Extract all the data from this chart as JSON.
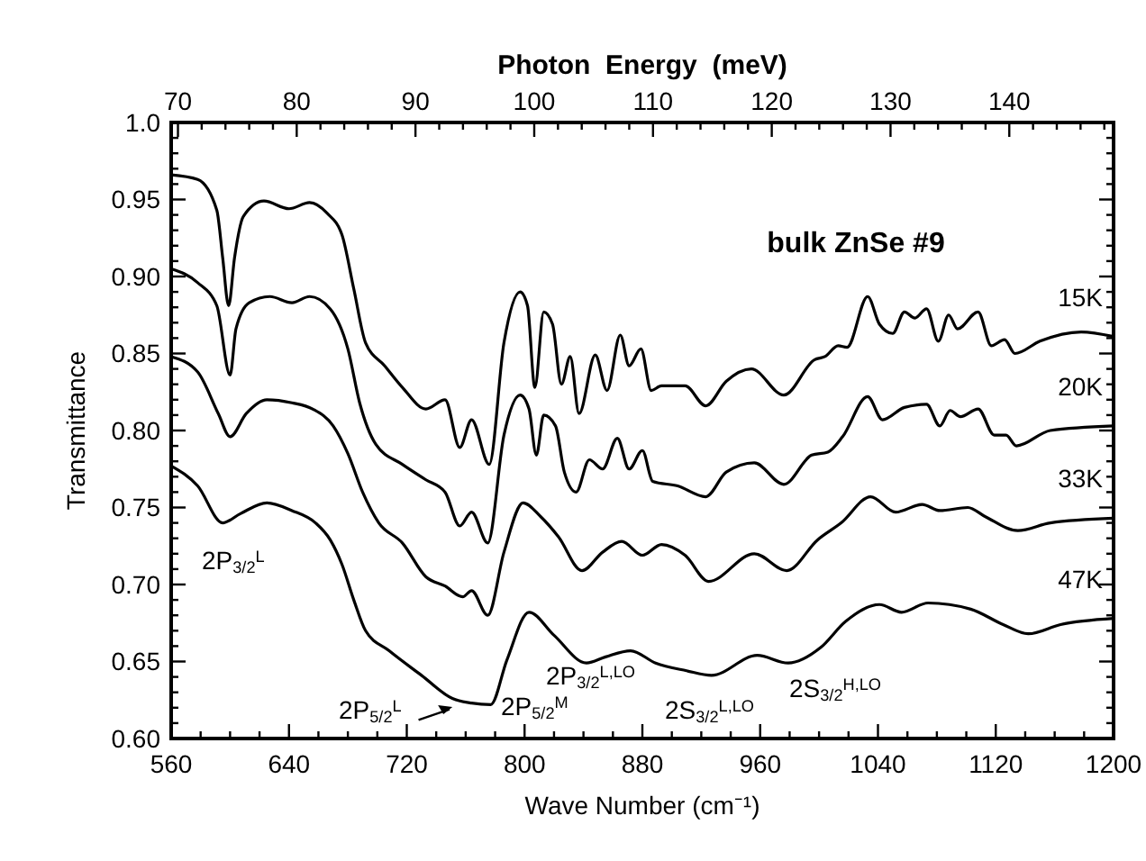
{
  "chart_data": {
    "type": "line",
    "xlabel": "Wave Number (cm⁻¹)",
    "ylabel": "Transmittance",
    "x2label": "Photon  Energy  (meV)",
    "xlim": [
      560,
      1200
    ],
    "ylim": [
      0.6,
      1.0
    ],
    "x2lim": [
      69.43,
      148.78
    ],
    "xticks": [
      560,
      {
        "value": 580,
        "label": null
      },
      {
        "value": 600,
        "label": null
      },
      {
        "value": 620,
        "label": null
      },
      640,
      {
        "value": 660,
        "label": null
      },
      {
        "value": 680,
        "label": null
      },
      {
        "value": 700,
        "label": null
      },
      720,
      {
        "value": 740,
        "label": null
      },
      {
        "value": 760,
        "label": null
      },
      {
        "value": 780,
        "label": null
      },
      800,
      {
        "value": 820,
        "label": null
      },
      {
        "value": 840,
        "label": null
      },
      {
        "value": 860,
        "label": null
      },
      880,
      {
        "value": 900,
        "label": null
      },
      {
        "value": 920,
        "label": null
      },
      {
        "value": 940,
        "label": null
      },
      960,
      {
        "value": 980,
        "label": null
      },
      {
        "value": 1000,
        "label": null
      },
      {
        "value": 1020,
        "label": null
      },
      1040,
      {
        "value": 1060,
        "label": null
      },
      {
        "value": 1080,
        "label": null
      },
      {
        "value": 1100,
        "label": null
      },
      1120,
      {
        "value": 1140,
        "label": null
      },
      {
        "value": 1160,
        "label": null
      },
      {
        "value": 1180,
        "label": null
      },
      1200
    ],
    "x2ticks": [
      70,
      {
        "value": 72,
        "label": null
      },
      {
        "value": 74,
        "label": null
      },
      {
        "value": 76,
        "label": null
      },
      {
        "value": 78,
        "label": null
      },
      80,
      {
        "value": 82,
        "label": null
      },
      {
        "value": 84,
        "label": null
      },
      {
        "value": 86,
        "label": null
      },
      {
        "value": 88,
        "label": null
      },
      90,
      {
        "value": 92,
        "label": null
      },
      {
        "value": 94,
        "label": null
      },
      {
        "value": 96,
        "label": null
      },
      {
        "value": 98,
        "label": null
      },
      100,
      {
        "value": 102,
        "label": null
      },
      {
        "value": 104,
        "label": null
      },
      {
        "value": 106,
        "label": null
      },
      {
        "value": 108,
        "label": null
      },
      110,
      {
        "value": 112,
        "label": null
      },
      {
        "value": 114,
        "label": null
      },
      {
        "value": 116,
        "label": null
      },
      {
        "value": 118,
        "label": null
      },
      120,
      {
        "value": 122,
        "label": null
      },
      {
        "value": 124,
        "label": null
      },
      {
        "value": 126,
        "label": null
      },
      {
        "value": 128,
        "label": null
      },
      130,
      {
        "value": 132,
        "label": null
      },
      {
        "value": 134,
        "label": null
      },
      {
        "value": 136,
        "label": null
      },
      {
        "value": 138,
        "label": null
      },
      140,
      {
        "value": 142,
        "label": null
      },
      {
        "value": 144,
        "label": null
      },
      {
        "value": 146,
        "label": null
      },
      {
        "value": 148,
        "label": null
      }
    ],
    "yticks": [
      {
        "value": 0.6,
        "label": "0.60"
      },
      {
        "value": 0.61,
        "label": null
      },
      {
        "value": 0.62,
        "label": null
      },
      {
        "value": 0.63,
        "label": null
      },
      {
        "value": 0.64,
        "label": null
      },
      0.65,
      {
        "value": 0.66,
        "label": null
      },
      {
        "value": 0.67,
        "label": null
      },
      {
        "value": 0.68,
        "label": null
      },
      {
        "value": 0.69,
        "label": null
      },
      {
        "value": 0.7,
        "label": "0.70"
      },
      {
        "value": 0.71,
        "label": null
      },
      {
        "value": 0.72,
        "label": null
      },
      {
        "value": 0.73,
        "label": null
      },
      {
        "value": 0.74,
        "label": null
      },
      0.75,
      {
        "value": 0.76,
        "label": null
      },
      {
        "value": 0.77,
        "label": null
      },
      {
        "value": 0.78,
        "label": null
      },
      {
        "value": 0.79,
        "label": null
      },
      {
        "value": 0.8,
        "label": "0.80"
      },
      {
        "value": 0.81,
        "label": null
      },
      {
        "value": 0.82,
        "label": null
      },
      {
        "value": 0.83,
        "label": null
      },
      {
        "value": 0.84,
        "label": null
      },
      0.85,
      {
        "value": 0.86,
        "label": null
      },
      {
        "value": 0.87,
        "label": null
      },
      {
        "value": 0.88,
        "label": null
      },
      {
        "value": 0.89,
        "label": null
      },
      {
        "value": 0.9,
        "label": "0.90"
      },
      {
        "value": 0.91,
        "label": null
      },
      {
        "value": 0.92,
        "label": null
      },
      {
        "value": 0.93,
        "label": null
      },
      {
        "value": 0.94,
        "label": null
      },
      0.95,
      {
        "value": 0.96,
        "label": null
      },
      {
        "value": 0.97,
        "label": null
      },
      {
        "value": 0.98,
        "label": null
      },
      {
        "value": 0.99,
        "label": null
      },
      {
        "value": 1.0,
        "label": "1.0"
      }
    ],
    "grid": false,
    "legend": "right",
    "marker": "none",
    "line_style": "solid",
    "series": [
      {
        "name": "15K",
        "color": "#000000",
        "x": [
          560,
          578,
          591,
          595,
          599,
          603,
          609,
          623,
          640,
          654,
          666,
          676,
          684,
          692,
          705,
          717,
          733,
          746,
          756,
          764,
          776,
          786,
          797,
          802,
          807,
          813,
          819,
          825,
          831,
          837,
          848,
          856,
          865,
          871,
          879,
          886,
          893,
          909,
          923,
          937,
          954,
          976,
          997,
          1004,
          1013,
          1019,
          1033,
          1041,
          1050,
          1058,
          1065,
          1073,
          1081,
          1088,
          1094,
          1108,
          1117,
          1126,
          1133,
          1150,
          1178,
          1200
        ],
        "values": [
          0.966,
          0.963,
          0.943,
          0.912,
          0.881,
          0.912,
          0.939,
          0.949,
          0.944,
          0.948,
          0.941,
          0.927,
          0.892,
          0.857,
          0.842,
          0.828,
          0.814,
          0.82,
          0.789,
          0.807,
          0.778,
          0.857,
          0.89,
          0.881,
          0.828,
          0.877,
          0.869,
          0.83,
          0.848,
          0.811,
          0.849,
          0.826,
          0.862,
          0.842,
          0.853,
          0.826,
          0.829,
          0.829,
          0.816,
          0.832,
          0.84,
          0.823,
          0.846,
          0.848,
          0.855,
          0.854,
          0.887,
          0.869,
          0.863,
          0.877,
          0.873,
          0.879,
          0.858,
          0.875,
          0.866,
          0.877,
          0.855,
          0.859,
          0.85,
          0.858,
          0.864,
          0.861
        ]
      },
      {
        "name": "20K",
        "color": "#000000",
        "x": [
          560,
          578,
          591,
          600,
          604,
          613,
          627,
          642,
          654,
          668,
          680,
          688,
          699,
          717,
          733,
          746,
          756,
          764,
          775,
          786,
          797,
          803,
          808,
          813,
          821,
          827,
          835,
          844,
          853,
          863,
          871,
          880,
          887,
          904,
          923,
          937,
          956,
          976,
          995,
          1006,
          1016,
          1033,
          1043,
          1058,
          1073,
          1082,
          1089,
          1096,
          1108,
          1119,
          1127,
          1134,
          1157,
          1200
        ],
        "values": [
          0.905,
          0.896,
          0.881,
          0.836,
          0.866,
          0.883,
          0.887,
          0.883,
          0.887,
          0.879,
          0.853,
          0.818,
          0.791,
          0.778,
          0.768,
          0.76,
          0.738,
          0.747,
          0.727,
          0.797,
          0.823,
          0.814,
          0.784,
          0.81,
          0.803,
          0.773,
          0.76,
          0.781,
          0.775,
          0.795,
          0.775,
          0.787,
          0.767,
          0.764,
          0.757,
          0.773,
          0.779,
          0.765,
          0.784,
          0.786,
          0.796,
          0.822,
          0.807,
          0.815,
          0.817,
          0.803,
          0.813,
          0.809,
          0.814,
          0.797,
          0.797,
          0.79,
          0.8,
          0.803
        ]
      },
      {
        "name": "33K",
        "color": "#000000",
        "x": [
          560,
          578,
          592,
          600,
          611,
          625,
          642,
          656,
          670,
          680,
          690,
          701,
          717,
          733,
          746,
          758,
          764,
          775,
          786,
          799,
          811,
          823,
          839,
          853,
          866,
          880,
          893,
          909,
          925,
          956,
          978,
          999,
          1015,
          1035,
          1052,
          1070,
          1082,
          1101,
          1113,
          1135,
          1157,
          1200
        ],
        "values": [
          0.848,
          0.838,
          0.811,
          0.796,
          0.811,
          0.82,
          0.818,
          0.814,
          0.803,
          0.785,
          0.76,
          0.74,
          0.727,
          0.705,
          0.699,
          0.692,
          0.696,
          0.68,
          0.721,
          0.753,
          0.744,
          0.731,
          0.709,
          0.721,
          0.728,
          0.719,
          0.726,
          0.719,
          0.702,
          0.72,
          0.709,
          0.729,
          0.74,
          0.757,
          0.747,
          0.752,
          0.748,
          0.75,
          0.744,
          0.735,
          0.74,
          0.743
        ]
      },
      {
        "name": "47K",
        "color": "#000000",
        "x": [
          560,
          578,
          595,
          607,
          625,
          642,
          658,
          668,
          676,
          684,
          692,
          708,
          730,
          751,
          764,
          777,
          788,
          803,
          820,
          842,
          855,
          872,
          889,
          910,
          927,
          958,
          979,
          1001,
          1018,
          1041,
          1056,
          1074,
          1103,
          1125,
          1142,
          1164,
          1200
        ],
        "values": [
          0.777,
          0.764,
          0.74,
          0.746,
          0.753,
          0.748,
          0.74,
          0.729,
          0.713,
          0.69,
          0.67,
          0.657,
          0.641,
          0.626,
          0.623,
          0.622,
          0.651,
          0.682,
          0.667,
          0.649,
          0.653,
          0.657,
          0.649,
          0.644,
          0.641,
          0.654,
          0.649,
          0.659,
          0.676,
          0.687,
          0.682,
          0.688,
          0.684,
          0.674,
          0.668,
          0.674,
          0.678
        ]
      }
    ],
    "annotations": [
      "bulk ZnSe #9",
      "2P$_{3/2}$$^{L}$",
      "2P$_{5/2}$$^{L}$",
      "2P$_{5/2}$$^{M}$",
      "2P$_{3/2}$$^{L,LO}$",
      "2S$_{3/2}$$^{L,LO}$",
      "2S$_{3/2}$$^{H,LO}$"
    ]
  }
}
